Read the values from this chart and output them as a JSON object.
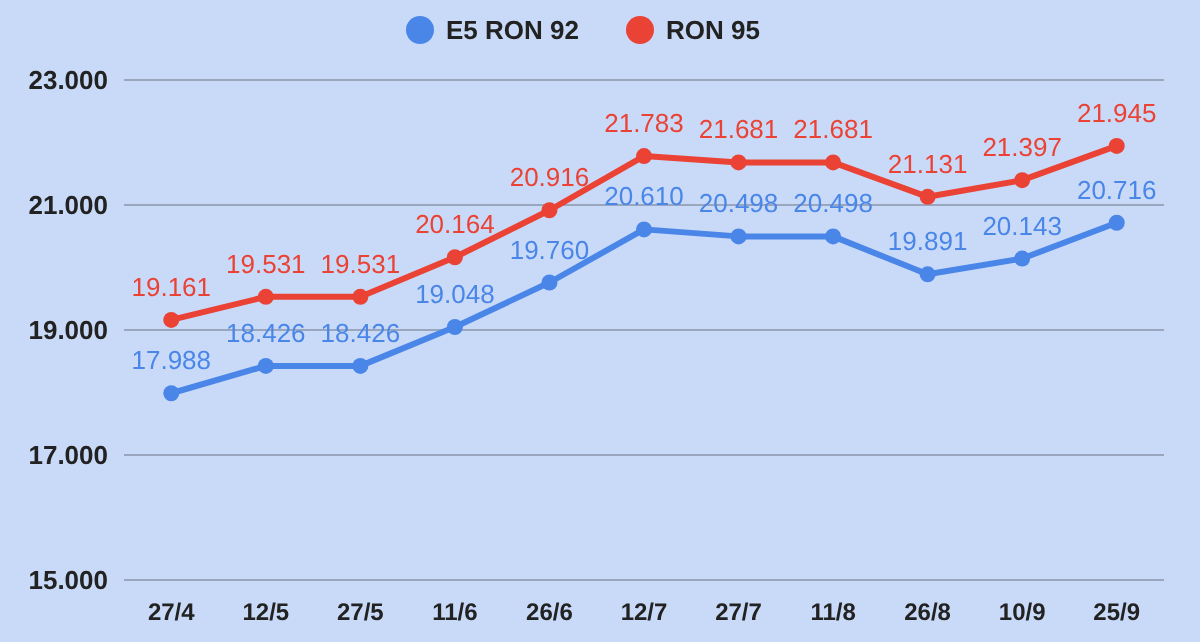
{
  "chart_data": {
    "type": "line",
    "categories": [
      "27/4",
      "12/5",
      "27/5",
      "11/6",
      "26/6",
      "12/7",
      "27/7",
      "11/8",
      "26/8",
      "10/9",
      "25/9"
    ],
    "series": [
      {
        "name": "E5 RON 92",
        "color": "#4a86e8",
        "values": [
          17988,
          18426,
          18426,
          19048,
          19760,
          20610,
          20498,
          20498,
          19891,
          20143,
          20716
        ],
        "value_labels": [
          "17.988",
          "18.426",
          "18.426",
          "19.048",
          "19.760",
          "20.610",
          "20.498",
          "20.498",
          "19.891",
          "20.143",
          "20.716"
        ]
      },
      {
        "name": "RON 95",
        "color": "#ea4335",
        "values": [
          19161,
          19531,
          19531,
          20164,
          20916,
          21783,
          21681,
          21681,
          21131,
          21397,
          21945
        ],
        "value_labels": [
          "19.161",
          "19.531",
          "19.531",
          "20.164",
          "20.916",
          "21.783",
          "21.681",
          "21.681",
          "21.131",
          "21.397",
          "21.945"
        ]
      }
    ],
    "ylim": [
      15000,
      23000
    ],
    "yticks": [
      {
        "value": 15000,
        "label": "15.000"
      },
      {
        "value": 17000,
        "label": "17.000"
      },
      {
        "value": 19000,
        "label": "19.000"
      },
      {
        "value": 21000,
        "label": "21.000"
      },
      {
        "value": 23000,
        "label": "23.000"
      }
    ],
    "grid": "y",
    "legend": "top",
    "marker": "circle",
    "line_style": "solid"
  }
}
